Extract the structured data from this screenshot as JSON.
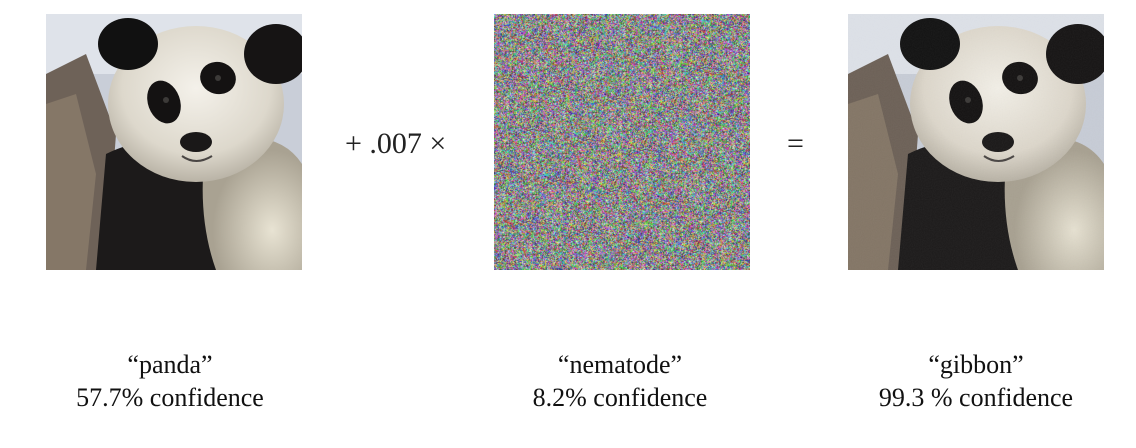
{
  "figure": {
    "operators": {
      "plus": "+ .007 ×",
      "equals": "="
    },
    "panels": [
      {
        "image": "panda-photo",
        "label": "“panda”",
        "confidence": "57.7% confidence"
      },
      {
        "image": "adversarial-noise",
        "label": "“nematode”",
        "confidence": "8.2% confidence"
      },
      {
        "image": "panda-photo-perturbed",
        "label": "“gibbon”",
        "confidence": "99.3 % confidence"
      }
    ]
  }
}
